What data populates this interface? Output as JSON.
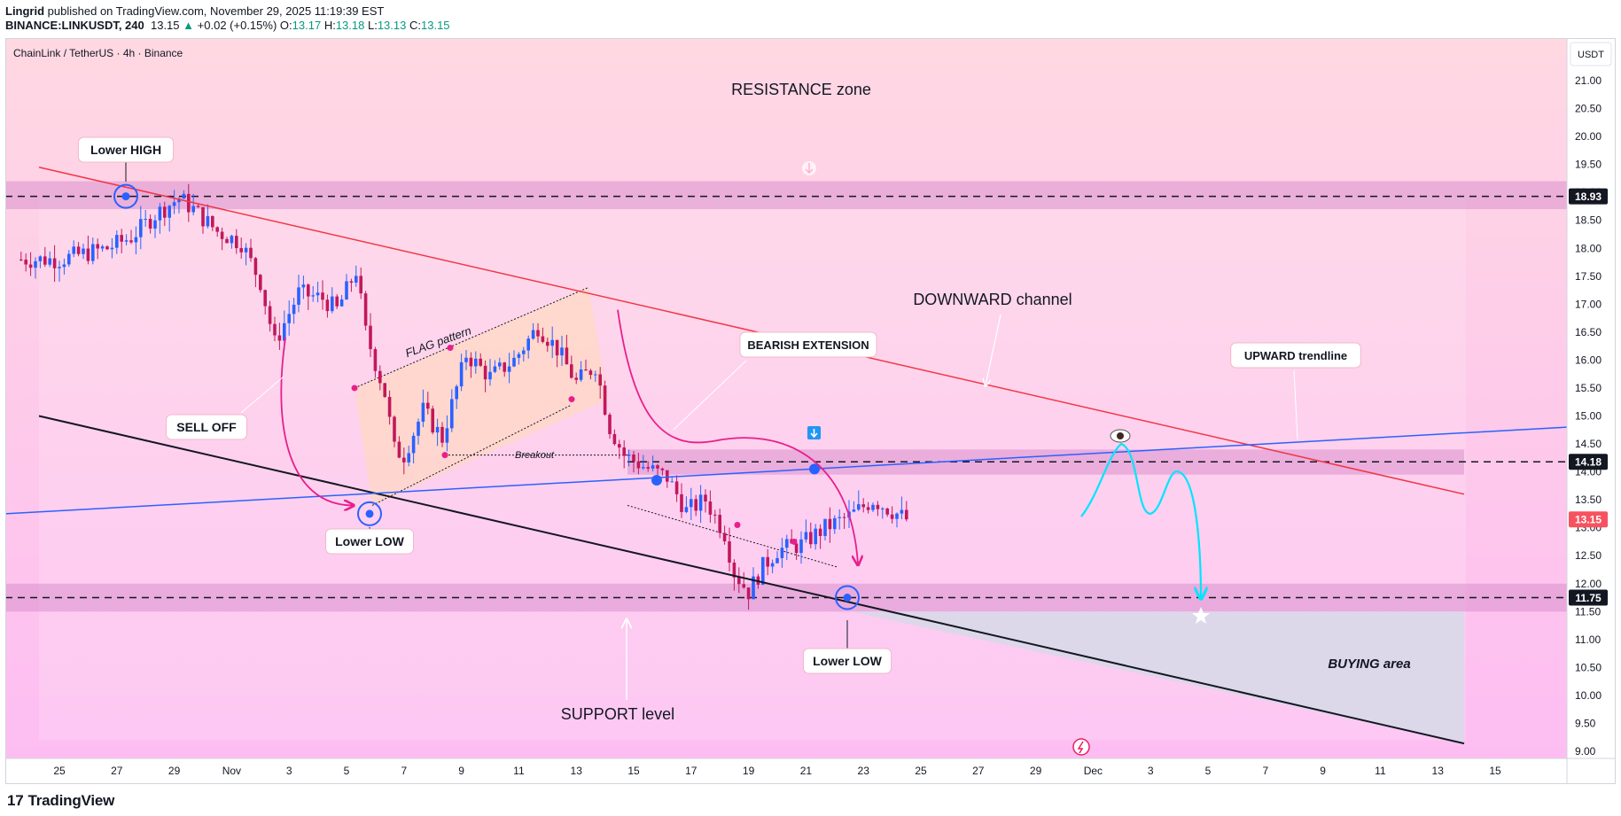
{
  "header": {
    "author": "Lingrid",
    "published": "published on TradingView.com, November 29, 2025 11:19:39 EST",
    "symbol": "BINANCE:LINKUSDT, 240",
    "last": "13.15",
    "change_arrow": "▲",
    "change": "+0.02 (+0.15%)",
    "o_label": "O:",
    "o": "13.17",
    "h_label": "H:",
    "h": "13.18",
    "l_label": "L:",
    "l": "13.13",
    "c_label": "C:",
    "c": "13.15"
  },
  "legend_title": "ChainLink / TetherUS · 4h · Binance",
  "currency_label": "USDT",
  "footer": {
    "brand": "TradingView",
    "logo_mark": "17"
  },
  "colors": {
    "up": "#2962ff",
    "down": "#c2185b",
    "trend_red": "#f23645",
    "trend_blue": "#2962ff",
    "zone": "#d98fce",
    "bg_top": "#ffd6e0",
    "bg_bottom": "#fdb9f4",
    "projection": "#00e5ff"
  },
  "chart_data": {
    "type": "candlestick",
    "symbol": "LINKUSDT",
    "timeframe": "4h",
    "ylim": [
      8.85,
      21.5
    ],
    "y_ticks": [
      "21.00",
      "20.50",
      "20.00",
      "19.50",
      "19.00",
      "18.50",
      "18.00",
      "17.50",
      "17.00",
      "16.50",
      "16.00",
      "15.50",
      "15.00",
      "14.50",
      "14.00",
      "13.50",
      "13.00",
      "12.50",
      "12.00",
      "11.50",
      "11.00",
      "10.50",
      "10.00",
      "9.50",
      "9.00"
    ],
    "x_ticks": [
      "25",
      "27",
      "29",
      "Nov",
      "3",
      "5",
      "7",
      "9",
      "11",
      "13",
      "15",
      "17",
      "19",
      "21",
      "23",
      "25",
      "27",
      "29",
      "Dec",
      "3",
      "5",
      "7",
      "9",
      "11",
      "13",
      "15"
    ],
    "price_tags": [
      {
        "value": 18.93,
        "label": "18.93",
        "style": "dark"
      },
      {
        "value": 14.18,
        "label": "14.18",
        "style": "dark"
      },
      {
        "value": 13.15,
        "label": "13.15",
        "style": "last"
      },
      {
        "value": 11.75,
        "label": "11.75",
        "style": "dark"
      }
    ],
    "price_path": [
      [
        0,
        17.8
      ],
      [
        5,
        17.9
      ],
      [
        10,
        18.0
      ],
      [
        15,
        18.2
      ],
      [
        20,
        18.6
      ],
      [
        25,
        18.9
      ],
      [
        28,
        18.7
      ],
      [
        33,
        18.3
      ],
      [
        38,
        18.1
      ],
      [
        42,
        17.4
      ],
      [
        45,
        16.3
      ],
      [
        50,
        17.2
      ],
      [
        55,
        17.1
      ],
      [
        58,
        16.9
      ],
      [
        62,
        17.6
      ],
      [
        64,
        16.5
      ],
      [
        68,
        15.4
      ],
      [
        70,
        14.4
      ],
      [
        72,
        14.3
      ],
      [
        76,
        15.1
      ],
      [
        80,
        14.6
      ],
      [
        85,
        16.1
      ],
      [
        90,
        15.7
      ],
      [
        95,
        16.0
      ],
      [
        100,
        16.6
      ],
      [
        104,
        16.2
      ],
      [
        108,
        15.6
      ],
      [
        112,
        15.9
      ],
      [
        115,
        14.8
      ],
      [
        118,
        14.3
      ],
      [
        122,
        14.1
      ],
      [
        127,
        13.9
      ],
      [
        131,
        13.3
      ],
      [
        135,
        13.5
      ],
      [
        139,
        12.9
      ],
      [
        141,
        12.2
      ],
      [
        144,
        11.85
      ],
      [
        147,
        12.3
      ],
      [
        150,
        12.6
      ],
      [
        155,
        12.7
      ],
      [
        160,
        13.0
      ],
      [
        165,
        13.2
      ],
      [
        170,
        13.5
      ],
      [
        174,
        13.3
      ],
      [
        177,
        13.15
      ]
    ],
    "price_span": [
      0,
      177
    ],
    "x_span": [
      -8,
      245
    ],
    "levels": [
      {
        "name": "resistance",
        "value": 18.93,
        "band": [
          18.7,
          19.2
        ]
      },
      {
        "name": "mid",
        "value": 14.18,
        "band": [
          13.95,
          14.4
        ]
      },
      {
        "name": "support",
        "value": 11.75,
        "band": [
          11.5,
          12.0
        ]
      }
    ],
    "annotations": {
      "resistance_zone": "RESISTANCE zone",
      "lower_high": "Lower HIGH",
      "sell_off": "SELL OFF",
      "flag_pattern": "FLAG pattern",
      "breakout": "Breakout",
      "lower_low_1": "Lower LOW",
      "bearish_extension": "BEARISH EXTENSION",
      "downward_channel": "DOWNWARD channel",
      "upward_trendline": "UPWARD trendline",
      "lower_low_2": "Lower LOW",
      "support_level": "SUPPORT level",
      "buying_area": "BUYING area"
    }
  }
}
